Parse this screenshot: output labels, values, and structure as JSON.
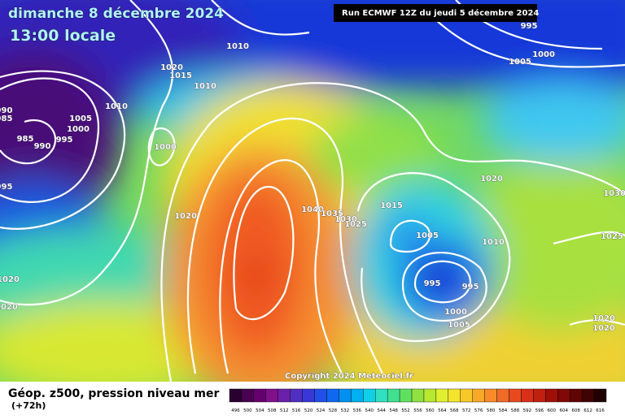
{
  "header": {
    "title": "dimanche 8 décembre 2024",
    "subtitle": "13:00 locale",
    "run": "Run ECMWF 12Z du jeudi 5 décembre 2024"
  },
  "copyright": "Copyright 2024 Meteociel.fr",
  "footer": {
    "label": "Géop. z500, pression niveau mer",
    "lead": "(+72h)"
  },
  "isobar_labels": [
    "1010",
    "1020",
    "1015",
    "1010",
    "1010",
    "1005",
    "1000",
    "995",
    "990",
    "985",
    "990",
    "985",
    "1000",
    "1020",
    "995",
    "1020",
    "1020",
    "995",
    "1000",
    "1005",
    "1020",
    "1015",
    "1040",
    "1035",
    "1030",
    "1025",
    "1005",
    "1010",
    "995",
    "995",
    "1000",
    "1005",
    "1030",
    "1025",
    "1020",
    "1020"
  ],
  "legend": {
    "values": [
      496,
      500,
      504,
      508,
      512,
      516,
      520,
      524,
      528,
      532,
      536,
      540,
      544,
      548,
      552,
      556,
      560,
      564,
      568,
      572,
      576,
      580,
      584,
      588,
      592,
      596,
      600,
      604,
      608,
      612,
      616
    ],
    "colors": [
      "#2a0030",
      "#4a0050",
      "#66006e",
      "#80108a",
      "#6a20a8",
      "#5030c0",
      "#3838d8",
      "#2050e8",
      "#1068f0",
      "#0090f0",
      "#00b0f0",
      "#10d0e8",
      "#30e0c0",
      "#40e090",
      "#60e060",
      "#90e040",
      "#b8e830",
      "#e0f030",
      "#f5e42e",
      "#f8c828",
      "#f8a828",
      "#f88a28",
      "#f06a28",
      "#e84a20",
      "#d83018",
      "#c02010",
      "#a01008",
      "#800808",
      "#600404",
      "#400202",
      "#200000"
    ]
  }
}
